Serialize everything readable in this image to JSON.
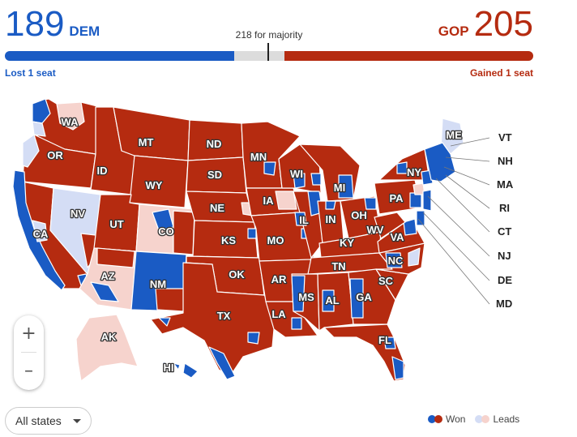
{
  "header": {
    "dem": {
      "seats": "189",
      "party": "DEM",
      "change": "Lost 1 seat"
    },
    "gop": {
      "seats": "205",
      "party": "GOP",
      "change": "Gained 1 seat"
    },
    "majority_label": "218 for majority"
  },
  "seat_bar": {
    "total_seats": 435,
    "dem_seats": 189,
    "gop_seats": 205,
    "majority": 218
  },
  "colors": {
    "dem_won": "#1a5bc4",
    "gop_won": "#b52b10",
    "dem_leads": "#d4ddf5",
    "gop_leads": "#f6d3cd",
    "undecided": "#dcdcdc"
  },
  "map": {
    "state_labels": [
      "WA",
      "OR",
      "CA",
      "ID",
      "NV",
      "MT",
      "WY",
      "UT",
      "AZ",
      "CO",
      "NM",
      "ND",
      "SD",
      "NE",
      "KS",
      "OK",
      "TX",
      "MN",
      "IA",
      "MO",
      "AR",
      "LA",
      "WI",
      "IL",
      "MI",
      "IN",
      "OH",
      "KY",
      "TN",
      "MS",
      "AL",
      "GA",
      "FL",
      "SC",
      "NC",
      "VA",
      "WV",
      "PA",
      "NY",
      "ME",
      "AK",
      "HI"
    ],
    "side_labels": [
      "VT",
      "NH",
      "MA",
      "RI",
      "CT",
      "NJ",
      "DE",
      "MD"
    ]
  },
  "zoom": {
    "in_label": "+",
    "out_label": "–"
  },
  "filter": {
    "selected": "All states"
  },
  "legend": {
    "won": "Won",
    "leads": "Leads"
  }
}
